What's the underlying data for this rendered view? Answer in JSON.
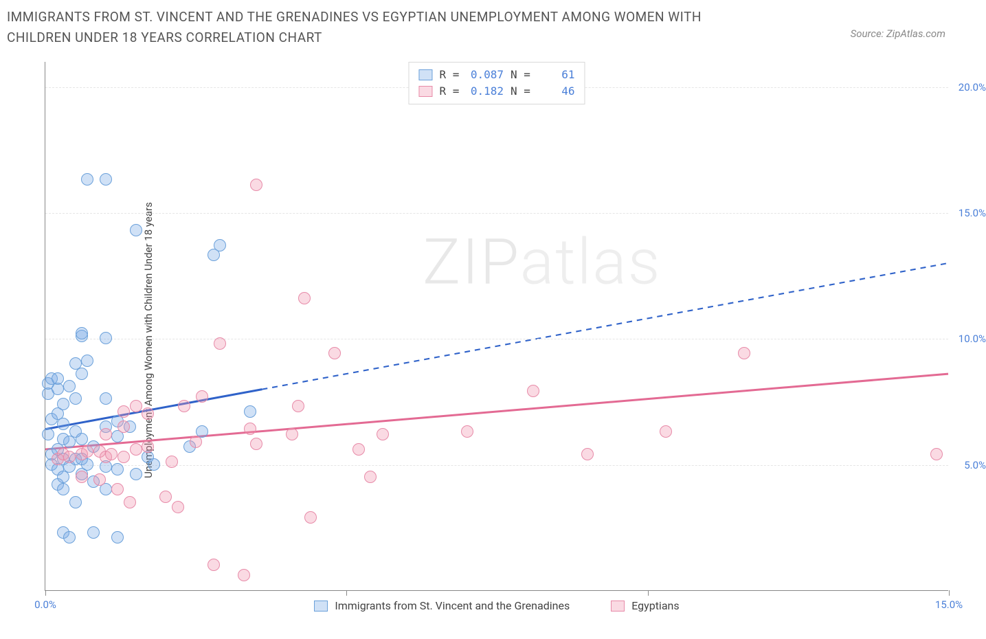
{
  "title": "IMMIGRANTS FROM ST. VINCENT AND THE GRENADINES VS EGYPTIAN UNEMPLOYMENT AMONG WOMEN WITH CHILDREN UNDER 18 YEARS CORRELATION CHART",
  "source_label": "Source: ZipAtlas.com",
  "ylabel": "Unemployment Among Women with Children Under 18 years",
  "watermark_a": "ZIP",
  "watermark_b": "atlas",
  "chart": {
    "type": "scatter",
    "xlim": [
      0,
      15
    ],
    "ylim": [
      0,
      21
    ],
    "x_ticks": [
      0,
      5,
      10,
      15
    ],
    "x_tick_labels": [
      "0.0%",
      "",
      "",
      "15.0%"
    ],
    "y_ticks": [
      5,
      10,
      15,
      20
    ],
    "y_tick_labels": [
      "5.0%",
      "10.0%",
      "15.0%",
      "20.0%"
    ],
    "grid_color": "#e5e5e5",
    "axis_color": "#888888",
    "background_color": "#ffffff",
    "marker_size": 18,
    "series": [
      {
        "name": "Immigrants from St. Vincent and the Grenadines",
        "short": "blue",
        "fill": "rgba(120,170,230,0.35)",
        "stroke": "#6aa0da",
        "R": "0.087",
        "N": "61",
        "trend": {
          "x1": 0,
          "y1": 6.4,
          "x2": 15,
          "y2": 13.0,
          "solid_until_x": 3.6,
          "color": "#2f62c9",
          "width": 3
        },
        "points": [
          [
            0.05,
            6.2
          ],
          [
            0.05,
            7.8
          ],
          [
            0.05,
            8.2
          ],
          [
            0.1,
            5.0
          ],
          [
            0.1,
            5.4
          ],
          [
            0.1,
            6.8
          ],
          [
            0.1,
            8.4
          ],
          [
            0.2,
            4.2
          ],
          [
            0.2,
            4.8
          ],
          [
            0.2,
            5.6
          ],
          [
            0.2,
            7.0
          ],
          [
            0.2,
            8.0
          ],
          [
            0.2,
            8.4
          ],
          [
            0.3,
            2.3
          ],
          [
            0.3,
            4.0
          ],
          [
            0.3,
            4.5
          ],
          [
            0.3,
            5.2
          ],
          [
            0.3,
            6.0
          ],
          [
            0.3,
            6.6
          ],
          [
            0.3,
            7.4
          ],
          [
            0.4,
            2.1
          ],
          [
            0.4,
            4.9
          ],
          [
            0.4,
            5.9
          ],
          [
            0.4,
            8.1
          ],
          [
            0.5,
            3.5
          ],
          [
            0.5,
            5.2
          ],
          [
            0.5,
            6.3
          ],
          [
            0.5,
            7.6
          ],
          [
            0.5,
            9.0
          ],
          [
            0.6,
            4.6
          ],
          [
            0.6,
            5.2
          ],
          [
            0.6,
            6.0
          ],
          [
            0.6,
            8.6
          ],
          [
            0.6,
            10.1
          ],
          [
            0.6,
            10.2
          ],
          [
            0.7,
            5.0
          ],
          [
            0.7,
            9.1
          ],
          [
            0.7,
            16.3
          ],
          [
            0.8,
            2.3
          ],
          [
            0.8,
            4.3
          ],
          [
            0.8,
            5.7
          ],
          [
            1.0,
            4.0
          ],
          [
            1.0,
            4.9
          ],
          [
            1.0,
            6.5
          ],
          [
            1.0,
            7.6
          ],
          [
            1.0,
            10.0
          ],
          [
            1.0,
            16.3
          ],
          [
            1.2,
            2.1
          ],
          [
            1.2,
            4.8
          ],
          [
            1.2,
            6.1
          ],
          [
            1.2,
            6.7
          ],
          [
            1.4,
            6.5
          ],
          [
            1.5,
            4.6
          ],
          [
            1.5,
            14.3
          ],
          [
            1.7,
            5.3
          ],
          [
            1.8,
            5.0
          ],
          [
            2.4,
            5.7
          ],
          [
            2.6,
            6.3
          ],
          [
            2.8,
            13.3
          ],
          [
            2.9,
            13.7
          ],
          [
            3.4,
            7.1
          ]
        ]
      },
      {
        "name": "Egyptians",
        "short": "pink",
        "fill": "rgba(240,150,175,0.35)",
        "stroke": "#e78aa8",
        "R": "0.182",
        "N": "46",
        "trend": {
          "x1": 0,
          "y1": 5.6,
          "x2": 15,
          "y2": 8.6,
          "solid_until_x": 15,
          "color": "#e36a93",
          "width": 3
        },
        "points": [
          [
            0.2,
            5.2
          ],
          [
            0.3,
            5.4
          ],
          [
            0.4,
            5.3
          ],
          [
            0.6,
            4.5
          ],
          [
            0.6,
            5.4
          ],
          [
            0.7,
            5.5
          ],
          [
            0.9,
            4.4
          ],
          [
            0.9,
            5.5
          ],
          [
            1.0,
            5.3
          ],
          [
            1.0,
            6.2
          ],
          [
            1.1,
            5.4
          ],
          [
            1.2,
            4.0
          ],
          [
            1.3,
            5.3
          ],
          [
            1.3,
            6.5
          ],
          [
            1.3,
            7.1
          ],
          [
            1.4,
            3.5
          ],
          [
            1.5,
            5.6
          ],
          [
            1.5,
            7.3
          ],
          [
            1.7,
            5.7
          ],
          [
            1.7,
            7.0
          ],
          [
            2.0,
            3.7
          ],
          [
            2.1,
            5.1
          ],
          [
            2.2,
            3.3
          ],
          [
            2.3,
            7.3
          ],
          [
            2.5,
            5.9
          ],
          [
            2.6,
            7.7
          ],
          [
            2.8,
            1.0
          ],
          [
            2.9,
            9.8
          ],
          [
            3.3,
            0.6
          ],
          [
            3.4,
            6.4
          ],
          [
            3.5,
            5.8
          ],
          [
            3.5,
            16.1
          ],
          [
            4.1,
            6.2
          ],
          [
            4.2,
            7.3
          ],
          [
            4.3,
            11.6
          ],
          [
            4.4,
            2.9
          ],
          [
            4.8,
            9.4
          ],
          [
            5.2,
            5.6
          ],
          [
            5.4,
            4.5
          ],
          [
            5.6,
            6.2
          ],
          [
            7.0,
            6.3
          ],
          [
            8.1,
            7.9
          ],
          [
            9.0,
            5.4
          ],
          [
            10.3,
            6.3
          ],
          [
            11.6,
            9.4
          ],
          [
            14.8,
            5.4
          ]
        ]
      }
    ]
  },
  "legend_top": {
    "r_label": "R =",
    "n_label": "N ="
  }
}
